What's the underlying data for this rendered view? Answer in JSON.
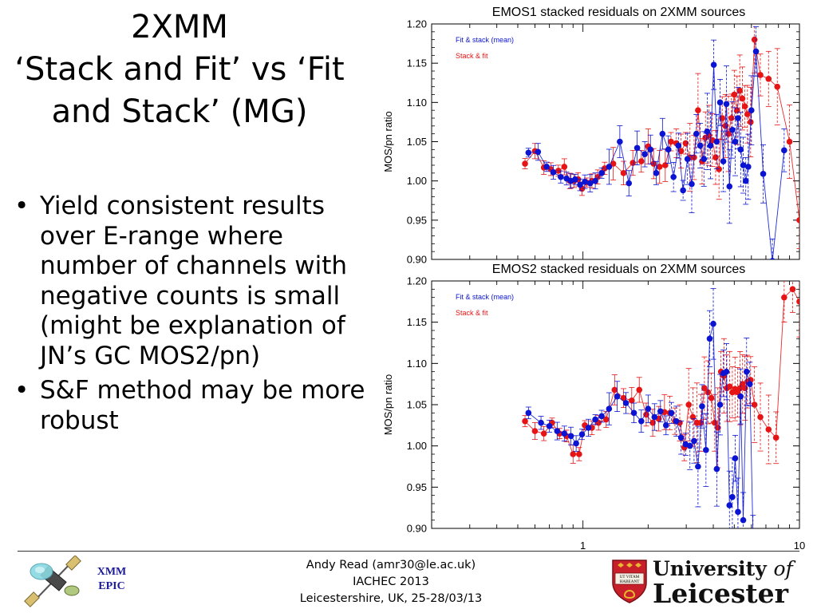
{
  "slide": {
    "title_lines": [
      "2XMM",
      "‘Stack and Fit’ vs ‘Fit",
      "and Stack’ (MG)"
    ],
    "bullets": [
      "Yield consistent results over E-range where number of channels with negative counts is small (might be explanation of JN’s GC MOS2/pn)",
      "S&F method may be more robust"
    ],
    "bullet_glyph": "•"
  },
  "footer": {
    "lines": [
      "Andy Read (amr30@le.ac.uk)",
      "IACHEC 2013",
      "Leicestershire, UK, 25-28/03/13"
    ],
    "left_logo_text": [
      "XMM",
      "EPIC"
    ],
    "university_line1": "University",
    "university_of": "of",
    "university_line2": "Leicester",
    "crest_motto": [
      "UT VITAM",
      "HABEANT"
    ]
  },
  "colors": {
    "blue_series": "#0a14d2",
    "red_series": "#e61414",
    "xmm_text": "#1a1a9a",
    "crest_red": "#c8202a",
    "crest_gold": "#e8b830"
  },
  "chart_data": [
    {
      "type": "scatter",
      "title": "EMOS1 stacked residuals on 2XMM sources",
      "xlabel": "",
      "ylabel": "MOS/pn ratio",
      "xscale": "log",
      "xlim": [
        0.2,
        10
      ],
      "ylim": [
        0.9,
        1.2
      ],
      "yticks": [
        "0.90",
        "0.95",
        "1.00",
        "1.05",
        "1.10",
        "1.15",
        "1.20"
      ],
      "xticks": [],
      "legend_position": "top-left",
      "series": [
        {
          "name": "Fit & stack (mean)",
          "color": "blue",
          "x": [
            0.56,
            0.62,
            0.68,
            0.73,
            0.79,
            0.84,
            0.88,
            0.92,
            0.97,
            1.02,
            1.08,
            1.14,
            1.22,
            1.32,
            1.48,
            1.63,
            1.78,
            1.93,
            2.05,
            2.18,
            2.33,
            2.48,
            2.62,
            2.76,
            2.9,
            3.04,
            3.18,
            3.34,
            3.48,
            3.62,
            3.75,
            3.88,
            4.02,
            4.15,
            4.3,
            4.45,
            4.6,
            4.75,
            4.9,
            5.05,
            5.2,
            5.35,
            5.5,
            5.65,
            5.8,
            6.0,
            6.3,
            6.8,
            7.5,
            8.5
          ],
          "y": [
            1.036,
            1.037,
            1.018,
            1.011,
            1.005,
            1.003,
            1.0,
            1.002,
            0.995,
            0.999,
            0.997,
            1.0,
            1.01,
            1.018,
            1.05,
            0.997,
            1.042,
            1.034,
            1.04,
            1.01,
            1.06,
            1.04,
            1.005,
            1.045,
            0.988,
            1.028,
            0.996,
            1.06,
            1.045,
            1.028,
            1.063,
            1.045,
            1.148,
            1.05,
            1.1,
            1.025,
            1.098,
            0.993,
            1.065,
            1.05,
            1.08,
            1.04,
            1.02,
            1.0,
            1.018,
            1.09,
            1.165,
            1.009,
            0.898,
            1.039
          ]
        },
        {
          "name": "Stack & fit",
          "color": "red",
          "x": [
            0.54,
            0.6,
            0.66,
            0.71,
            0.77,
            0.82,
            0.87,
            0.91,
            0.95,
            0.99,
            1.04,
            1.1,
            1.17,
            1.26,
            1.38,
            1.54,
            1.7,
            1.86,
            2.0,
            2.12,
            2.26,
            2.4,
            2.55,
            2.7,
            2.84,
            2.98,
            3.12,
            3.26,
            3.4,
            3.55,
            3.68,
            3.82,
            3.96,
            4.1,
            4.25,
            4.4,
            4.55,
            4.7,
            4.85,
            5.0,
            5.15,
            5.3,
            5.45,
            5.6,
            5.75,
            5.95,
            6.2,
            6.6,
            7.2,
            7.9,
            9.0,
            10.0
          ],
          "y": [
            1.022,
            1.038,
            1.017,
            1.015,
            1.013,
            1.018,
            1.0,
            1.0,
            1.002,
            0.99,
            0.998,
            1.0,
            1.005,
            1.016,
            1.022,
            1.01,
            1.023,
            1.025,
            1.044,
            1.022,
            1.018,
            1.02,
            1.05,
            1.048,
            1.038,
            1.048,
            1.03,
            1.03,
            1.09,
            1.025,
            1.055,
            1.058,
            1.052,
            1.03,
            1.015,
            1.08,
            1.07,
            1.06,
            1.08,
            1.11,
            1.09,
            1.115,
            1.105,
            1.095,
            1.085,
            1.075,
            1.18,
            1.135,
            1.13,
            1.12,
            1.05,
            0.95
          ]
        }
      ]
    },
    {
      "type": "scatter",
      "title": "EMOS2 stacked residuals on 2XMM sources",
      "xlabel": "",
      "ylabel": "MOS/pn ratio",
      "xscale": "log",
      "xlim": [
        0.2,
        10
      ],
      "ylim": [
        0.9,
        1.2
      ],
      "yticks": [
        "0.90",
        "0.95",
        "1.00",
        "1.05",
        "1.10",
        "1.15",
        "1.20"
      ],
      "xticks": [
        "1",
        "10"
      ],
      "legend_position": "top-left",
      "series": [
        {
          "name": "Fit & stack (mean)",
          "color": "blue",
          "x": [
            0.56,
            0.64,
            0.7,
            0.76,
            0.82,
            0.88,
            0.93,
            0.99,
            1.06,
            1.14,
            1.22,
            1.32,
            1.44,
            1.58,
            1.72,
            1.86,
            2.0,
            2.14,
            2.28,
            2.42,
            2.56,
            2.7,
            2.84,
            2.98,
            3.12,
            3.26,
            3.4,
            3.55,
            3.7,
            3.85,
            4.0,
            4.15,
            4.3,
            4.45,
            4.6,
            4.75,
            4.9,
            5.05,
            5.2,
            5.35,
            5.5,
            5.7,
            5.9,
            6.1
          ],
          "y": [
            1.04,
            1.028,
            1.024,
            1.018,
            1.015,
            1.012,
            1.003,
            1.014,
            1.022,
            1.032,
            1.036,
            1.045,
            1.06,
            1.052,
            1.04,
            1.03,
            1.045,
            1.035,
            1.042,
            1.025,
            1.04,
            1.03,
            1.01,
            1.002,
            1.0,
            1.006,
            0.975,
            1.048,
            0.995,
            1.13,
            1.148,
            0.972,
            1.05,
            1.088,
            1.09,
            0.928,
            0.938,
            0.985,
            0.92,
            1.06,
            0.91,
            1.09,
            1.075,
            0.89
          ]
        },
        {
          "name": "Stack & fit",
          "color": "red",
          "x": [
            0.54,
            0.6,
            0.66,
            0.72,
            0.78,
            0.84,
            0.9,
            0.96,
            1.02,
            1.1,
            1.18,
            1.28,
            1.4,
            1.54,
            1.68,
            1.82,
            1.96,
            2.1,
            2.24,
            2.38,
            2.52,
            2.66,
            2.8,
            2.94,
            3.08,
            3.22,
            3.36,
            3.5,
            3.64,
            3.78,
            3.92,
            4.06,
            4.2,
            4.34,
            4.48,
            4.62,
            4.76,
            4.9,
            5.04,
            5.18,
            5.32,
            5.46,
            5.6,
            5.75,
            5.95,
            6.2,
            6.6,
            7.2,
            7.8,
            8.5,
            9.3,
            10.0
          ],
          "y": [
            1.03,
            1.018,
            1.015,
            1.028,
            1.015,
            1.012,
            0.99,
            0.99,
            1.025,
            1.022,
            1.028,
            1.032,
            1.068,
            1.058,
            1.055,
            1.068,
            1.038,
            1.028,
            1.033,
            1.041,
            1.04,
            1.03,
            1.028,
            0.998,
            1.05,
            1.035,
            1.028,
            1.028,
            1.07,
            1.065,
            1.058,
            1.028,
            1.022,
            1.09,
            1.085,
            1.07,
            1.072,
            1.065,
            1.069,
            1.065,
            1.07,
            1.075,
            1.07,
            1.078,
            1.08,
            1.05,
            1.035,
            1.02,
            1.01,
            1.18,
            1.19,
            1.175
          ]
        }
      ]
    }
  ]
}
